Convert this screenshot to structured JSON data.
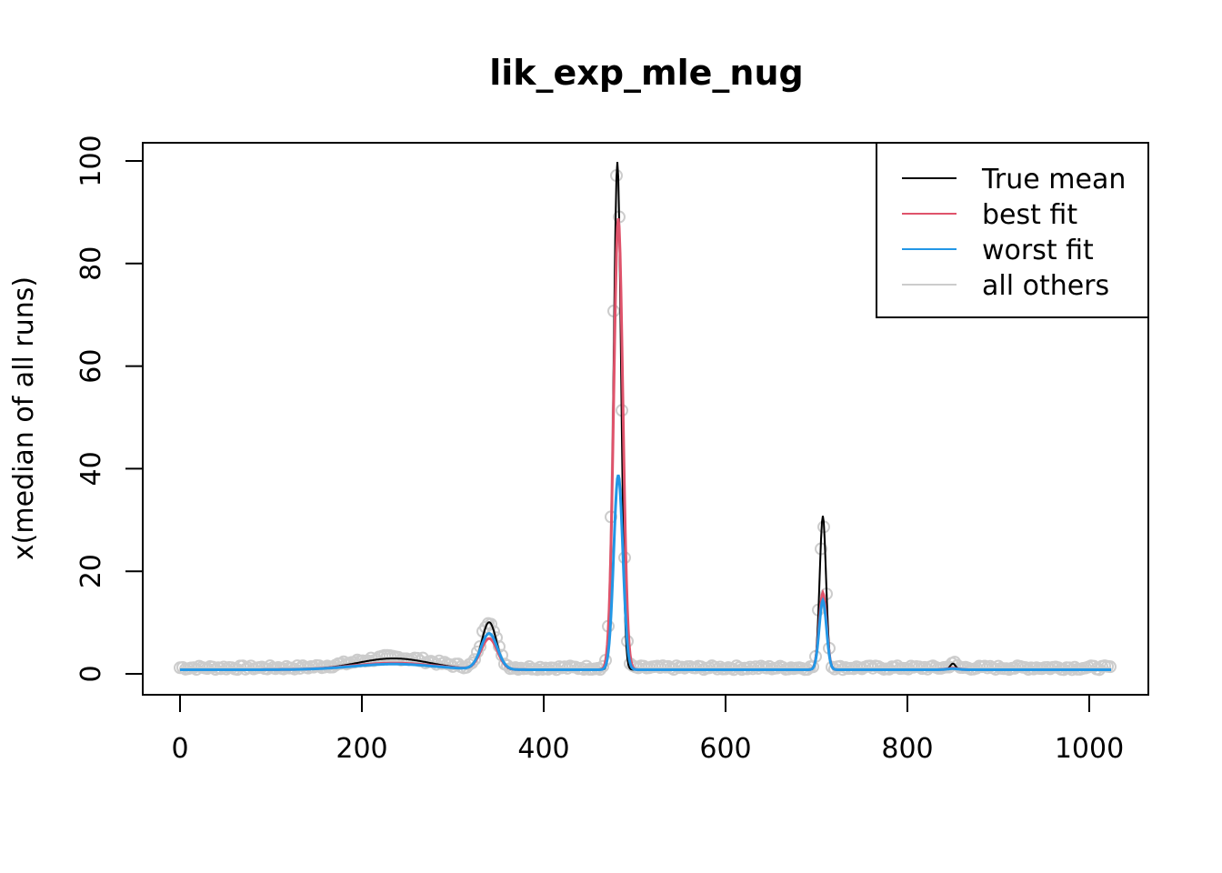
{
  "chart_data": {
    "type": "line",
    "title": "lik_exp_mle_nug",
    "xlabel": "",
    "ylabel": "x(median of all runs)",
    "xlim": [
      0,
      1024
    ],
    "ylim": [
      0,
      100
    ],
    "grid": false,
    "legend_position": "top-right",
    "x_ticks": [
      0,
      200,
      400,
      600,
      800,
      1000
    ],
    "y_ticks": [
      0,
      20,
      40,
      60,
      80,
      100
    ],
    "legend": [
      {
        "label": "True mean",
        "color": "#000000"
      },
      {
        "label": "best fit",
        "color": "#DF536B"
      },
      {
        "label": "worst fit",
        "color": "#2297E6"
      },
      {
        "label": "all others",
        "color": "#CCCCCC"
      }
    ],
    "series": [
      {
        "name": "True mean",
        "color": "#000000",
        "baseline": 0.8,
        "peaks": [
          [
            235,
            2.2,
            40
          ],
          [
            340,
            9.2,
            8
          ],
          [
            481,
            99,
            4
          ],
          [
            707,
            30,
            3.5
          ],
          [
            850,
            1.2,
            3
          ]
        ]
      },
      {
        "name": "best fit",
        "color": "#DF536B",
        "baseline": 0.8,
        "peaks": [
          [
            235,
            1.3,
            45
          ],
          [
            340,
            6.0,
            9
          ],
          [
            482,
            88,
            5
          ],
          [
            707,
            15,
            4
          ],
          [
            850,
            0.3,
            6
          ]
        ]
      },
      {
        "name": "worst fit",
        "color": "#2297E6",
        "baseline": 0.8,
        "peaks": [
          [
            235,
            1.1,
            45
          ],
          [
            340,
            7.0,
            9
          ],
          [
            482,
            38,
            5
          ],
          [
            707,
            13.5,
            4
          ],
          [
            850,
            0.2,
            6
          ]
        ]
      },
      {
        "name": "all others",
        "color": "#CCCCCC",
        "baseline": 1.2,
        "peaks": [
          [
            235,
            2.0,
            40
          ],
          [
            340,
            9.5,
            8
          ],
          [
            481,
            98,
            4.5
          ],
          [
            707,
            29,
            3.5
          ],
          [
            850,
            1.0,
            3
          ]
        ]
      }
    ]
  }
}
